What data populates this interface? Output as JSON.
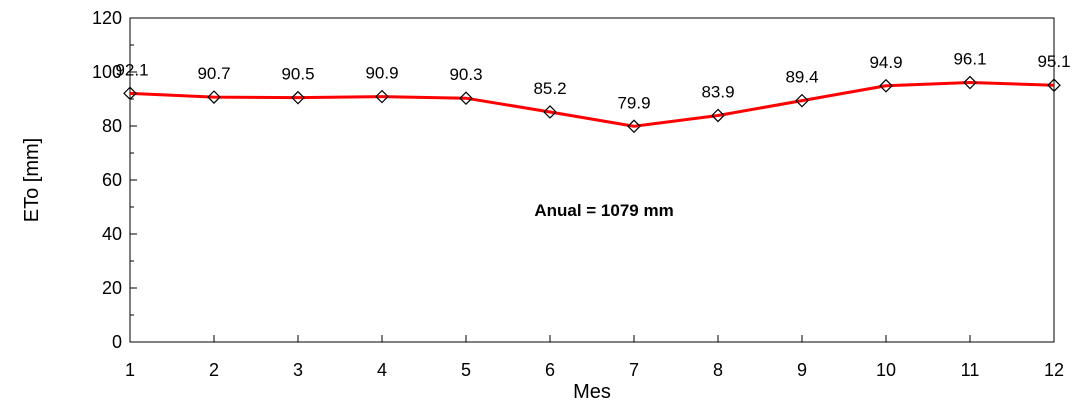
{
  "chart_data": {
    "type": "line",
    "title": "",
    "xlabel": "Mes",
    "ylabel": "ETo [mm]",
    "x": [
      1,
      2,
      3,
      4,
      5,
      6,
      7,
      8,
      9,
      10,
      11,
      12
    ],
    "series": [
      {
        "values": [
          92.1,
          90.7,
          90.5,
          90.9,
          90.3,
          85.2,
          79.9,
          83.9,
          89.4,
          94.9,
          96.1,
          95.1
        ],
        "color": "#ff0000",
        "marker": "diamond"
      }
    ],
    "data_labels": [
      "92.1",
      "90.7",
      "90.5",
      "90.9",
      "90.3",
      "85.2",
      "79.9",
      "83.9",
      "89.4",
      "94.9",
      "96.1",
      "95.1"
    ],
    "x_ticks": [
      "1",
      "2",
      "3",
      "4",
      "5",
      "6",
      "7",
      "8",
      "9",
      "10",
      "11",
      "12"
    ],
    "y_ticks": [
      "0",
      "20",
      "40",
      "60",
      "80",
      "100",
      "120"
    ],
    "xlim": [
      1,
      12
    ],
    "ylim": [
      0,
      120
    ],
    "grid": false,
    "annotation": "Anual = 1079 mm"
  }
}
